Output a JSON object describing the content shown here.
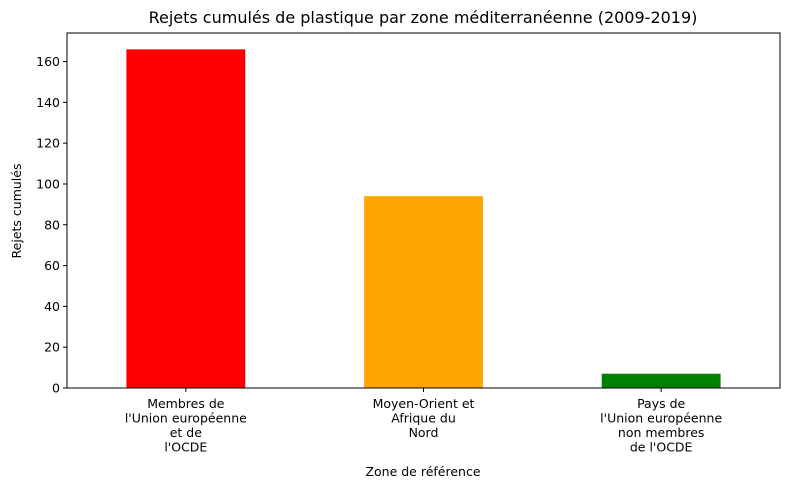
{
  "chart_data": {
    "type": "bar",
    "title": "Rejets cumulés de plastique par zone méditerranéenne (2009-2019)",
    "xlabel": "Zone de référence",
    "ylabel": "Rejets cumulés",
    "categories": [
      [
        "Membres de",
        "l'Union européenne",
        "et de",
        "l'OCDE"
      ],
      [
        "Moyen-Orient et",
        "Afrique du",
        "Nord"
      ],
      [
        "Pays de",
        "l'Union européenne",
        "non membres",
        "de l'OCDE"
      ]
    ],
    "values": [
      166,
      94,
      7
    ],
    "colors": [
      "#ff0000",
      "#ffa500",
      "#008000"
    ],
    "ylim": [
      0,
      174
    ],
    "yticks": [
      0,
      20,
      40,
      60,
      80,
      100,
      120,
      140,
      160
    ],
    "grid": false,
    "legend": "none"
  }
}
